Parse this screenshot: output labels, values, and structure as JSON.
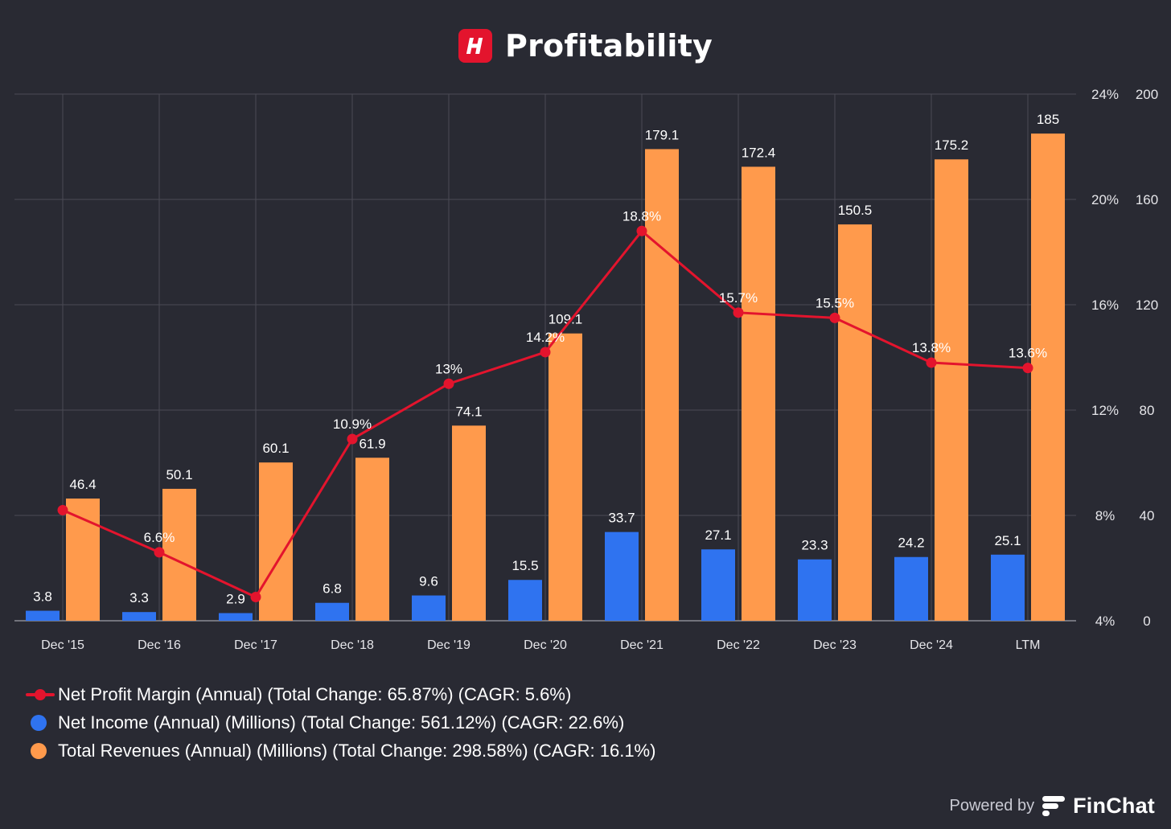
{
  "header": {
    "title": "Profitability",
    "logo_letter": "H",
    "logo_color": "#e3142d"
  },
  "chart_data": {
    "type": "bar",
    "title": "Profitability",
    "categories": [
      "Dec '15",
      "Dec '16",
      "Dec '17",
      "Dec '18",
      "Dec '19",
      "Dec '20",
      "Dec '21",
      "Dec '22",
      "Dec '23",
      "Dec '24",
      "LTM"
    ],
    "series": [
      {
        "name": "Net Income (Annual) (Millions) (Total Change: 561.12%) (CAGR: 22.6%)",
        "type": "bar",
        "axis": "right",
        "color": "#2f73f0",
        "values": [
          3.8,
          3.3,
          2.9,
          6.8,
          9.6,
          15.5,
          33.7,
          27.1,
          23.3,
          24.2,
          25.1
        ],
        "labels": [
          "3.8",
          "3.3",
          "2.9",
          "6.8",
          "9.6",
          "15.5",
          "33.7",
          "27.1",
          "23.3",
          "24.2",
          "25.1"
        ]
      },
      {
        "name": "Total Revenues (Annual) (Millions) (Total Change: 298.58%) (CAGR: 16.1%)",
        "type": "bar",
        "axis": "right",
        "color": "#ff9a4c",
        "values": [
          46.4,
          50.1,
          60.1,
          61.9,
          74.1,
          109.1,
          179.1,
          172.4,
          150.5,
          175.2,
          185
        ],
        "labels": [
          "46.4",
          "50.1",
          "60.1",
          "61.9",
          "74.1",
          "109.1",
          "179.1",
          "172.4",
          "150.5",
          "175.2",
          "185"
        ]
      },
      {
        "name": "Net Profit Margin (Annual) (Total Change: 65.87%) (CAGR: 5.6%)",
        "type": "line",
        "axis": "left",
        "color": "#e3142d",
        "values": [
          8.2,
          6.6,
          4.9,
          10.9,
          13.0,
          14.2,
          18.8,
          15.7,
          15.5,
          13.8,
          13.6
        ],
        "labels": [
          "",
          "6.6%",
          "",
          "10.9%",
          "13%",
          "14.2%",
          "18.8%",
          "15.7%",
          "15.5%",
          "13.8%",
          "13.6%"
        ]
      }
    ],
    "y_left": {
      "range": [
        4,
        24
      ],
      "ticks": [
        "24%",
        "20%",
        "16%",
        "12%",
        "8%",
        "4%"
      ],
      "tick_values": [
        24,
        20,
        16,
        12,
        8,
        4
      ]
    },
    "y_right": {
      "range": [
        0,
        200
      ],
      "ticks": [
        "200",
        "160",
        "120",
        "80",
        "40",
        "0"
      ],
      "tick_values": [
        200,
        160,
        120,
        80,
        40,
        0
      ]
    },
    "grid": true,
    "legend_placement": "bottom-left"
  },
  "legend": [
    {
      "label": "Net Profit Margin (Annual) (Total Change: 65.87%) (CAGR: 5.6%)",
      "marker": "line",
      "color": "#e3142d"
    },
    {
      "label": "Net Income (Annual) (Millions) (Total Change: 561.12%) (CAGR: 22.6%)",
      "marker": "dot",
      "color": "#2f73f0"
    },
    {
      "label": "Total Revenues (Annual) (Millions) (Total Change: 298.58%) (CAGR: 16.1%)",
      "marker": "dot",
      "color": "#ff9a4c"
    }
  ],
  "footer": {
    "powered_by": "Powered by",
    "brand": "FinChat"
  },
  "colors": {
    "background": "#292a33",
    "grid": "#4a4b55",
    "axis_text": "#e6e6ea"
  }
}
